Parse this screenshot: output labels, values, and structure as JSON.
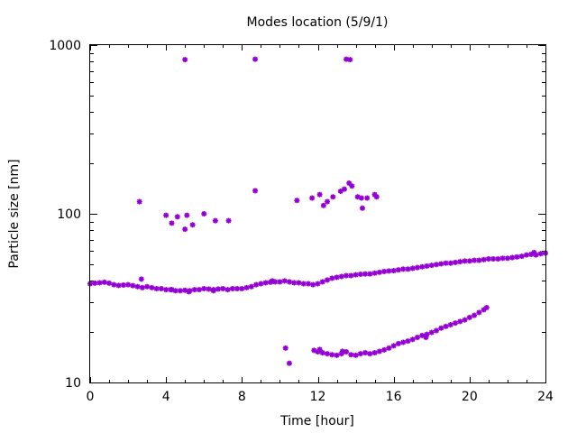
{
  "chart_data": {
    "type": "scatter",
    "title": "Modes location (5/9/1)",
    "xlabel": "Time [hour]",
    "ylabel": "Particle size [nm]",
    "xlim": [
      0,
      24
    ],
    "ylim": [
      10,
      1000
    ],
    "yscale": "log",
    "grid": false,
    "legend": "none",
    "marker_color": "#9400d3",
    "x_ticks": [
      "0",
      "4",
      "8",
      "12",
      "16",
      "20",
      "24"
    ],
    "y_ticks": [
      "10",
      "100",
      "1000"
    ],
    "series": [
      {
        "points": [
          [
            0.0,
            38.5
          ],
          [
            0.25,
            38.8
          ],
          [
            0.5,
            39.0
          ],
          [
            0.75,
            39.3
          ],
          [
            1.0,
            38.8
          ],
          [
            1.25,
            38.0
          ],
          [
            1.5,
            37.6
          ],
          [
            1.75,
            37.8
          ],
          [
            2.0,
            38.0
          ],
          [
            2.25,
            37.5
          ],
          [
            2.5,
            37.0
          ],
          [
            2.75,
            36.5
          ],
          [
            3.0,
            37.0
          ],
          [
            3.25,
            36.5
          ],
          [
            3.5,
            36.0
          ],
          [
            3.75,
            36.0
          ],
          [
            4.0,
            35.5
          ],
          [
            4.25,
            35.5
          ],
          [
            4.5,
            35.0
          ],
          [
            4.75,
            35.0
          ],
          [
            5.0,
            35.2
          ],
          [
            5.25,
            35.0
          ],
          [
            5.5,
            35.5
          ],
          [
            5.75,
            35.5
          ],
          [
            6.0,
            36.0
          ],
          [
            6.25,
            35.8
          ],
          [
            6.5,
            35.5
          ],
          [
            6.75,
            35.8
          ],
          [
            7.0,
            36.0
          ],
          [
            7.25,
            35.5
          ],
          [
            7.5,
            36.0
          ],
          [
            7.75,
            36.0
          ],
          [
            8.0,
            36.0
          ],
          [
            8.25,
            36.5
          ],
          [
            8.5,
            37.0
          ],
          [
            8.75,
            38.0
          ],
          [
            9.0,
            38.5
          ],
          [
            9.25,
            39.0
          ],
          [
            9.5,
            39.3
          ],
          [
            9.75,
            39.5
          ],
          [
            10.0,
            39.5
          ],
          [
            10.25,
            40.0
          ],
          [
            10.5,
            39.5
          ],
          [
            10.75,
            39.0
          ],
          [
            11.0,
            39.0
          ],
          [
            11.25,
            38.5
          ],
          [
            11.5,
            38.5
          ],
          [
            11.75,
            38.0
          ],
          [
            12.0,
            38.5
          ],
          [
            12.25,
            39.5
          ],
          [
            12.5,
            40.5
          ],
          [
            12.75,
            41.5
          ],
          [
            13.0,
            42.0
          ],
          [
            13.25,
            42.5
          ],
          [
            13.5,
            43.0
          ],
          [
            13.75,
            43.0
          ],
          [
            14.0,
            43.5
          ],
          [
            14.25,
            43.8
          ],
          [
            14.5,
            44.0
          ],
          [
            14.75,
            44.0
          ],
          [
            15.0,
            44.5
          ],
          [
            15.25,
            45.0
          ],
          [
            15.5,
            45.5
          ],
          [
            15.75,
            45.8
          ],
          [
            16.0,
            46.0
          ],
          [
            16.25,
            46.5
          ],
          [
            16.5,
            47.0
          ],
          [
            16.75,
            47.0
          ],
          [
            17.0,
            47.5
          ],
          [
            17.25,
            48.0
          ],
          [
            17.5,
            48.5
          ],
          [
            17.75,
            49.0
          ],
          [
            18.0,
            49.5
          ],
          [
            18.25,
            50.0
          ],
          [
            18.5,
            50.5
          ],
          [
            18.75,
            51.0
          ],
          [
            19.0,
            51.0
          ],
          [
            19.25,
            51.5
          ],
          [
            19.5,
            52.0
          ],
          [
            19.75,
            52.5
          ],
          [
            20.0,
            52.5
          ],
          [
            20.25,
            53.0
          ],
          [
            20.5,
            53.0
          ],
          [
            20.75,
            53.5
          ],
          [
            21.0,
            54.0
          ],
          [
            21.25,
            54.0
          ],
          [
            21.5,
            54.0
          ],
          [
            21.75,
            54.5
          ],
          [
            22.0,
            54.5
          ],
          [
            22.25,
            55.0
          ],
          [
            22.5,
            55.5
          ],
          [
            22.75,
            56.0
          ],
          [
            23.0,
            57.0
          ],
          [
            23.25,
            57.5
          ],
          [
            23.5,
            57.0
          ],
          [
            23.75,
            58.0
          ],
          [
            24.0,
            58.5
          ],
          [
            2.7,
            41.0
          ],
          [
            4.3,
            35.5
          ],
          [
            5.2,
            34.5
          ],
          [
            6.5,
            35.0
          ],
          [
            9.6,
            40.0
          ],
          [
            23.4,
            59.0
          ],
          [
            11.8,
            15.5
          ],
          [
            12.0,
            15.2
          ],
          [
            12.25,
            15.0
          ],
          [
            12.5,
            14.8
          ],
          [
            12.75,
            14.6
          ],
          [
            13.0,
            14.5
          ],
          [
            13.25,
            14.8
          ],
          [
            13.5,
            15.2
          ],
          [
            13.75,
            14.6
          ],
          [
            14.0,
            14.5
          ],
          [
            14.25,
            14.8
          ],
          [
            14.5,
            15.0
          ],
          [
            14.75,
            14.8
          ],
          [
            15.0,
            15.0
          ],
          [
            15.25,
            15.3
          ],
          [
            15.5,
            15.6
          ],
          [
            15.75,
            16.0
          ],
          [
            16.0,
            16.5
          ],
          [
            16.25,
            17.0
          ],
          [
            16.5,
            17.3
          ],
          [
            16.75,
            17.6
          ],
          [
            17.0,
            18.0
          ],
          [
            17.25,
            18.5
          ],
          [
            17.5,
            19.0
          ],
          [
            17.75,
            19.3
          ],
          [
            18.0,
            19.8
          ],
          [
            18.25,
            20.3
          ],
          [
            18.5,
            21.0
          ],
          [
            18.75,
            21.5
          ],
          [
            19.0,
            22.0
          ],
          [
            19.25,
            22.5
          ],
          [
            19.5,
            23.0
          ],
          [
            19.75,
            23.5
          ],
          [
            20.0,
            24.3
          ],
          [
            20.25,
            25.0
          ],
          [
            20.5,
            26.0
          ],
          [
            20.75,
            27.0
          ],
          [
            20.9,
            27.8
          ],
          [
            10.3,
            16.0
          ],
          [
            10.5,
            13.0
          ],
          [
            17.7,
            18.5
          ],
          [
            12.1,
            15.7
          ],
          [
            13.3,
            15.3
          ],
          [
            2.6,
            118
          ],
          [
            4.0,
            98
          ],
          [
            4.3,
            88
          ],
          [
            4.6,
            96
          ],
          [
            5.0,
            81
          ],
          [
            5.1,
            98
          ],
          [
            5.4,
            86
          ],
          [
            6.0,
            100
          ],
          [
            6.6,
            91
          ],
          [
            7.3,
            91
          ],
          [
            8.7,
            137
          ],
          [
            10.9,
            120
          ],
          [
            11.7,
            124
          ],
          [
            12.1,
            130
          ],
          [
            12.3,
            112
          ],
          [
            12.5,
            118
          ],
          [
            12.8,
            126
          ],
          [
            13.2,
            136
          ],
          [
            13.4,
            140
          ],
          [
            13.65,
            152
          ],
          [
            13.8,
            146
          ],
          [
            14.1,
            126
          ],
          [
            14.3,
            124
          ],
          [
            14.35,
            108
          ],
          [
            14.6,
            124
          ],
          [
            15.0,
            130
          ],
          [
            15.1,
            126
          ],
          [
            5.0,
            820
          ],
          [
            8.7,
            825
          ],
          [
            13.5,
            825
          ],
          [
            13.7,
            820
          ]
        ]
      }
    ]
  }
}
